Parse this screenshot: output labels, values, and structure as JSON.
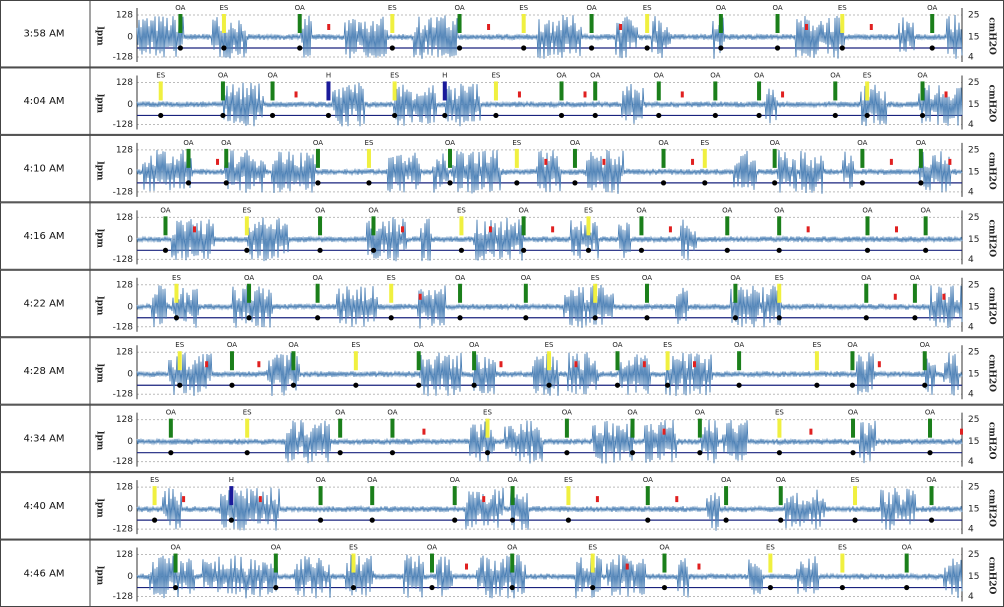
{
  "left_axis": {
    "label": "lpm",
    "ticks": [
      "128",
      "0",
      "-128"
    ]
  },
  "right_axis": {
    "label": "cmH2O",
    "ticks": [
      "25",
      "15",
      "4"
    ]
  },
  "rows": [
    {
      "time": "3:58 AM",
      "events": [
        {
          "label": "OA",
          "color": "#1b7f1b"
        },
        {
          "label": "ES",
          "color": "#f0f040"
        },
        {
          "label": "OA",
          "color": "#1b7f1b"
        },
        {
          "label": "ES",
          "color": "#f0f040"
        },
        {
          "label": "OA",
          "color": "#1b7f1b"
        },
        {
          "label": "ES",
          "color": "#f0f040"
        },
        {
          "label": "OA",
          "color": "#1b7f1b"
        },
        {
          "label": "ES",
          "color": "#f0f040"
        },
        {
          "label": "OA",
          "color": "#1b7f1b"
        },
        {
          "label": "OA",
          "color": "#1b7f1b"
        },
        {
          "label": "ES",
          "color": "#f0f040"
        },
        {
          "label": "OA",
          "color": "#1b7f1b"
        }
      ]
    },
    {
      "time": "4:04 AM",
      "events": [
        {
          "label": "ES",
          "color": "#f0f040"
        },
        {
          "label": "OA",
          "color": "#1b7f1b"
        },
        {
          "label": "OA",
          "color": "#1b7f1b"
        },
        {
          "label": "H",
          "color": "#1a1a9a"
        },
        {
          "label": "ES",
          "color": "#f0f040"
        },
        {
          "label": "H",
          "color": "#1a1a9a"
        },
        {
          "label": "ES",
          "color": "#f0f040"
        },
        {
          "label": "OA",
          "color": "#1b7f1b"
        },
        {
          "label": "OA",
          "color": "#1b7f1b"
        },
        {
          "label": "OA",
          "color": "#1b7f1b"
        },
        {
          "label": "OA",
          "color": "#1b7f1b"
        },
        {
          "label": "OA",
          "color": "#1b7f1b"
        },
        {
          "label": "OA",
          "color": "#1b7f1b"
        },
        {
          "label": "ES",
          "color": "#f0f040"
        },
        {
          "label": "OA",
          "color": "#1b7f1b"
        }
      ]
    },
    {
      "time": "4:10 AM",
      "events": [
        {
          "label": "OA",
          "color": "#1b7f1b"
        },
        {
          "label": "OA",
          "color": "#1b7f1b"
        },
        {
          "label": "OA",
          "color": "#1b7f1b"
        },
        {
          "label": "ES",
          "color": "#f0f040"
        },
        {
          "label": "OA",
          "color": "#1b7f1b"
        },
        {
          "label": "ES",
          "color": "#f0f040"
        },
        {
          "label": "OA",
          "color": "#1b7f1b"
        },
        {
          "label": "OA",
          "color": "#1b7f1b"
        },
        {
          "label": "ES",
          "color": "#f0f040"
        },
        {
          "label": "OA",
          "color": "#1b7f1b"
        },
        {
          "label": "OA",
          "color": "#1b7f1b"
        },
        {
          "label": "OA",
          "color": "#1b7f1b"
        }
      ]
    },
    {
      "time": "4:16 AM",
      "events": [
        {
          "label": "OA",
          "color": "#1b7f1b"
        },
        {
          "label": "ES",
          "color": "#f0f040"
        },
        {
          "label": "OA",
          "color": "#1b7f1b"
        },
        {
          "label": "OA",
          "color": "#1b7f1b"
        },
        {
          "label": "ES",
          "color": "#f0f040"
        },
        {
          "label": "OA",
          "color": "#1b7f1b"
        },
        {
          "label": "ES",
          "color": "#f0f040"
        },
        {
          "label": "OA",
          "color": "#1b7f1b"
        },
        {
          "label": "OA",
          "color": "#1b7f1b"
        },
        {
          "label": "OA",
          "color": "#1b7f1b"
        },
        {
          "label": "OA",
          "color": "#1b7f1b"
        },
        {
          "label": "OA",
          "color": "#1b7f1b"
        }
      ]
    },
    {
      "time": "4:22 AM",
      "events": [
        {
          "label": "ES",
          "color": "#f0f040"
        },
        {
          "label": "OA",
          "color": "#1b7f1b"
        },
        {
          "label": "OA",
          "color": "#1b7f1b"
        },
        {
          "label": "ES",
          "color": "#f0f040"
        },
        {
          "label": "OA",
          "color": "#1b7f1b"
        },
        {
          "label": "OA",
          "color": "#1b7f1b"
        },
        {
          "label": "ES",
          "color": "#f0f040"
        },
        {
          "label": "OA",
          "color": "#1b7f1b"
        },
        {
          "label": "OA",
          "color": "#1b7f1b"
        },
        {
          "label": "ES",
          "color": "#f0f040"
        },
        {
          "label": "OA",
          "color": "#1b7f1b"
        },
        {
          "label": "OA",
          "color": "#1b7f1b"
        }
      ]
    },
    {
      "time": "4:28 AM",
      "events": [
        {
          "label": "ES",
          "color": "#f0f040"
        },
        {
          "label": "OA",
          "color": "#1b7f1b"
        },
        {
          "label": "OA",
          "color": "#1b7f1b"
        },
        {
          "label": "ES",
          "color": "#f0f040"
        },
        {
          "label": "OA",
          "color": "#1b7f1b"
        },
        {
          "label": "OA",
          "color": "#1b7f1b"
        },
        {
          "label": "ES",
          "color": "#f0f040"
        },
        {
          "label": "OA",
          "color": "#1b7f1b"
        },
        {
          "label": "ES",
          "color": "#f0f040"
        },
        {
          "label": "OA",
          "color": "#1b7f1b"
        },
        {
          "label": "ES",
          "color": "#f0f040"
        },
        {
          "label": "OA",
          "color": "#1b7f1b"
        },
        {
          "label": "OA",
          "color": "#1b7f1b"
        }
      ]
    },
    {
      "time": "4:34 AM",
      "events": [
        {
          "label": "OA",
          "color": "#1b7f1b"
        },
        {
          "label": "ES",
          "color": "#f0f040"
        },
        {
          "label": "OA",
          "color": "#1b7f1b"
        },
        {
          "label": "OA",
          "color": "#1b7f1b"
        },
        {
          "label": "ES",
          "color": "#f0f040"
        },
        {
          "label": "OA",
          "color": "#1b7f1b"
        },
        {
          "label": "OA",
          "color": "#1b7f1b"
        },
        {
          "label": "OA",
          "color": "#1b7f1b"
        },
        {
          "label": "ES",
          "color": "#f0f040"
        },
        {
          "label": "OA",
          "color": "#1b7f1b"
        },
        {
          "label": "OA",
          "color": "#1b7f1b"
        }
      ]
    },
    {
      "time": "4:40 AM",
      "events": [
        {
          "label": "ES",
          "color": "#f0f040"
        },
        {
          "label": "H",
          "color": "#1a1a9a"
        },
        {
          "label": "OA",
          "color": "#1b7f1b"
        },
        {
          "label": "OA",
          "color": "#1b7f1b"
        },
        {
          "label": "OA",
          "color": "#1b7f1b"
        },
        {
          "label": "OA",
          "color": "#1b7f1b"
        },
        {
          "label": "ES",
          "color": "#f0f040"
        },
        {
          "label": "OA",
          "color": "#1b7f1b"
        },
        {
          "label": "OA",
          "color": "#1b7f1b"
        },
        {
          "label": "OA",
          "color": "#1b7f1b"
        },
        {
          "label": "ES",
          "color": "#f0f040"
        },
        {
          "label": "OA",
          "color": "#1b7f1b"
        }
      ]
    },
    {
      "time": "4:46 AM",
      "events": [
        {
          "label": "OA",
          "color": "#1b7f1b"
        },
        {
          "label": "OA",
          "color": "#1b7f1b"
        },
        {
          "label": "ES",
          "color": "#f0f040"
        },
        {
          "label": "OA",
          "color": "#1b7f1b"
        },
        {
          "label": "OA",
          "color": "#1b7f1b"
        },
        {
          "label": "ES",
          "color": "#f0f040"
        },
        {
          "label": "OA",
          "color": "#1b7f1b"
        },
        {
          "label": "ES",
          "color": "#f0f040"
        },
        {
          "label": "ES",
          "color": "#f0f040"
        },
        {
          "label": "OA",
          "color": "#1b7f1b"
        }
      ]
    }
  ]
}
